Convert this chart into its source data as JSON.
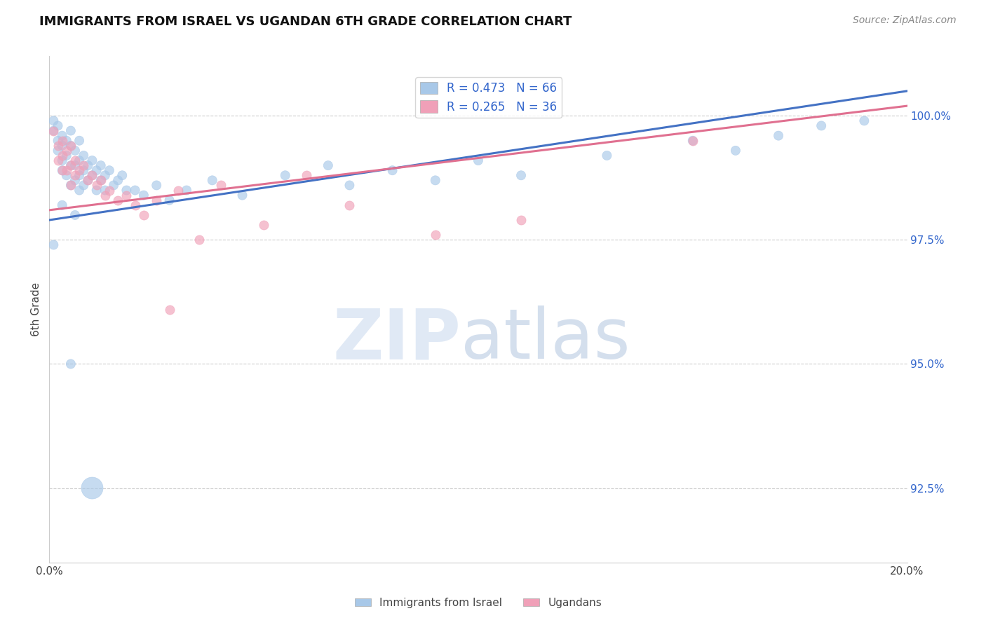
{
  "title": "IMMIGRANTS FROM ISRAEL VS UGANDAN 6TH GRADE CORRELATION CHART",
  "source": "Source: ZipAtlas.com",
  "ylabel": "6th Grade",
  "yticks": [
    92.5,
    95.0,
    97.5,
    100.0
  ],
  "ytick_labels": [
    "92.5%",
    "95.0%",
    "97.5%",
    "100.0%"
  ],
  "xlim": [
    0.0,
    0.2
  ],
  "ylim": [
    91.0,
    101.2
  ],
  "blue_color": "#a8c8e8",
  "pink_color": "#f0a0b8",
  "blue_line_color": "#4472c4",
  "pink_line_color": "#e07090",
  "israel_label": "Immigrants from Israel",
  "uganda_label": "Ugandans",
  "legend1_r": "0.473",
  "legend1_n": "66",
  "legend2_r": "0.265",
  "legend2_n": "36",
  "blue_trend_x0": 0.0,
  "blue_trend_y0": 97.9,
  "blue_trend_x1": 0.2,
  "blue_trend_y1": 100.5,
  "pink_trend_x0": 0.0,
  "pink_trend_y0": 98.1,
  "pink_trend_x1": 0.2,
  "pink_trend_y1": 100.2,
  "israel_pts": [
    [
      0.001,
      99.9
    ],
    [
      0.001,
      99.7
    ],
    [
      0.002,
      99.8
    ],
    [
      0.002,
      99.5
    ],
    [
      0.002,
      99.3
    ],
    [
      0.003,
      99.6
    ],
    [
      0.003,
      99.4
    ],
    [
      0.003,
      99.1
    ],
    [
      0.003,
      98.9
    ],
    [
      0.004,
      99.5
    ],
    [
      0.004,
      99.2
    ],
    [
      0.004,
      98.8
    ],
    [
      0.005,
      99.7
    ],
    [
      0.005,
      99.4
    ],
    [
      0.005,
      99.0
    ],
    [
      0.005,
      98.6
    ],
    [
      0.006,
      99.3
    ],
    [
      0.006,
      99.0
    ],
    [
      0.006,
      98.7
    ],
    [
      0.007,
      99.5
    ],
    [
      0.007,
      99.1
    ],
    [
      0.007,
      98.8
    ],
    [
      0.007,
      98.5
    ],
    [
      0.008,
      99.2
    ],
    [
      0.008,
      98.9
    ],
    [
      0.008,
      98.6
    ],
    [
      0.009,
      99.0
    ],
    [
      0.009,
      98.7
    ],
    [
      0.01,
      99.1
    ],
    [
      0.01,
      98.8
    ],
    [
      0.011,
      98.9
    ],
    [
      0.011,
      98.5
    ],
    [
      0.012,
      99.0
    ],
    [
      0.012,
      98.7
    ],
    [
      0.013,
      98.8
    ],
    [
      0.013,
      98.5
    ],
    [
      0.014,
      98.9
    ],
    [
      0.015,
      98.6
    ],
    [
      0.016,
      98.7
    ],
    [
      0.017,
      98.8
    ],
    [
      0.018,
      98.5
    ],
    [
      0.02,
      98.5
    ],
    [
      0.022,
      98.4
    ],
    [
      0.025,
      98.6
    ],
    [
      0.028,
      98.3
    ],
    [
      0.032,
      98.5
    ],
    [
      0.038,
      98.7
    ],
    [
      0.045,
      98.4
    ],
    [
      0.055,
      98.8
    ],
    [
      0.065,
      99.0
    ],
    [
      0.07,
      98.6
    ],
    [
      0.08,
      98.9
    ],
    [
      0.09,
      98.7
    ],
    [
      0.1,
      99.1
    ],
    [
      0.11,
      98.8
    ],
    [
      0.13,
      99.2
    ],
    [
      0.15,
      99.5
    ],
    [
      0.16,
      99.3
    ],
    [
      0.17,
      99.6
    ],
    [
      0.18,
      99.8
    ],
    [
      0.19,
      99.9
    ],
    [
      0.001,
      97.4
    ],
    [
      0.005,
      95.0
    ],
    [
      0.01,
      92.5
    ],
    [
      0.003,
      98.2
    ],
    [
      0.006,
      98.0
    ]
  ],
  "israel_large_idx": 63,
  "uganda_pts": [
    [
      0.001,
      99.7
    ],
    [
      0.002,
      99.4
    ],
    [
      0.002,
      99.1
    ],
    [
      0.003,
      99.5
    ],
    [
      0.003,
      99.2
    ],
    [
      0.003,
      98.9
    ],
    [
      0.004,
      99.3
    ],
    [
      0.004,
      98.9
    ],
    [
      0.005,
      99.4
    ],
    [
      0.005,
      99.0
    ],
    [
      0.005,
      98.6
    ],
    [
      0.006,
      99.1
    ],
    [
      0.006,
      98.8
    ],
    [
      0.007,
      98.9
    ],
    [
      0.008,
      99.0
    ],
    [
      0.009,
      98.7
    ],
    [
      0.01,
      98.8
    ],
    [
      0.011,
      98.6
    ],
    [
      0.012,
      98.7
    ],
    [
      0.013,
      98.4
    ],
    [
      0.014,
      98.5
    ],
    [
      0.016,
      98.3
    ],
    [
      0.018,
      98.4
    ],
    [
      0.02,
      98.2
    ],
    [
      0.022,
      98.0
    ],
    [
      0.025,
      98.3
    ],
    [
      0.03,
      98.5
    ],
    [
      0.035,
      97.5
    ],
    [
      0.04,
      98.6
    ],
    [
      0.05,
      97.8
    ],
    [
      0.06,
      98.8
    ],
    [
      0.07,
      98.2
    ],
    [
      0.09,
      97.6
    ],
    [
      0.11,
      97.9
    ],
    [
      0.15,
      99.5
    ],
    [
      0.028,
      96.1
    ]
  ]
}
